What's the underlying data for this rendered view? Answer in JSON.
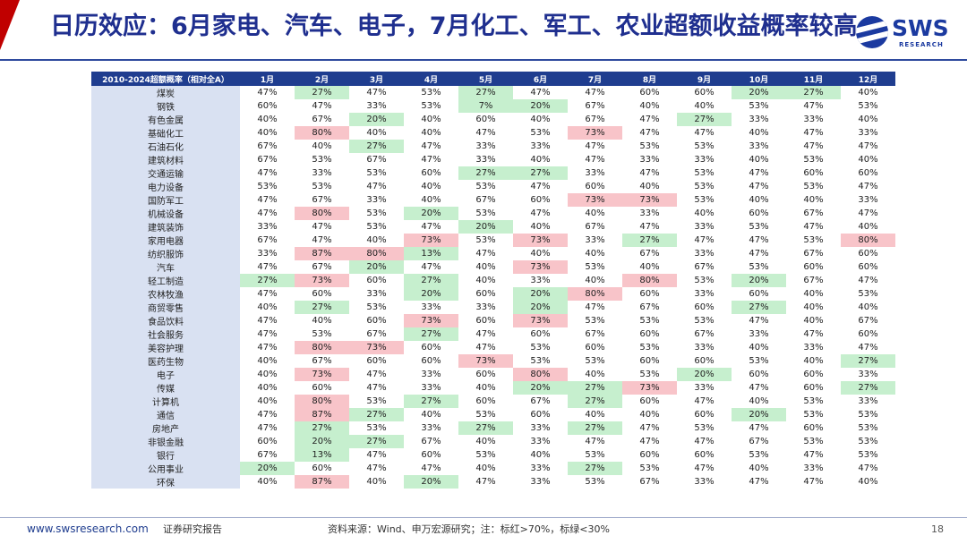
{
  "title": "日历效应：6月家电、汽车、电子，7月化工、军工、农业超额收益概率较高",
  "logo": {
    "text": "SWS",
    "sub": "RESEARCH"
  },
  "table": {
    "header": [
      "2010-2024超额概率（相对全A）",
      "1月",
      "2月",
      "3月",
      "4月",
      "5月",
      "6月",
      "7月",
      "8月",
      "9月",
      "10月",
      "11月",
      "12月"
    ],
    "rows": [
      {
        "name": "煤炭",
        "values": [
          "47%",
          "27%",
          "47%",
          "53%",
          "27%",
          "47%",
          "47%",
          "60%",
          "60%",
          "20%",
          "27%",
          "40%"
        ]
      },
      {
        "name": "钢铁",
        "values": [
          "60%",
          "47%",
          "33%",
          "53%",
          "7%",
          "20%",
          "67%",
          "40%",
          "40%",
          "53%",
          "47%",
          "53%"
        ]
      },
      {
        "name": "有色金属",
        "values": [
          "40%",
          "67%",
          "20%",
          "40%",
          "60%",
          "40%",
          "67%",
          "47%",
          "27%",
          "33%",
          "33%",
          "40%"
        ]
      },
      {
        "name": "基础化工",
        "values": [
          "40%",
          "80%",
          "40%",
          "40%",
          "47%",
          "53%",
          "73%",
          "47%",
          "47%",
          "40%",
          "47%",
          "33%"
        ]
      },
      {
        "name": "石油石化",
        "values": [
          "67%",
          "40%",
          "27%",
          "47%",
          "33%",
          "33%",
          "47%",
          "53%",
          "53%",
          "33%",
          "47%",
          "47%"
        ]
      },
      {
        "name": "建筑材料",
        "values": [
          "67%",
          "53%",
          "67%",
          "47%",
          "33%",
          "40%",
          "47%",
          "33%",
          "33%",
          "40%",
          "53%",
          "40%"
        ]
      },
      {
        "name": "交通运输",
        "values": [
          "47%",
          "33%",
          "53%",
          "60%",
          "27%",
          "27%",
          "33%",
          "47%",
          "53%",
          "47%",
          "60%",
          "60%"
        ]
      },
      {
        "name": "电力设备",
        "values": [
          "53%",
          "53%",
          "47%",
          "40%",
          "53%",
          "47%",
          "60%",
          "40%",
          "53%",
          "47%",
          "53%",
          "47%"
        ]
      },
      {
        "name": "国防军工",
        "values": [
          "47%",
          "67%",
          "33%",
          "40%",
          "67%",
          "60%",
          "73%",
          "73%",
          "53%",
          "40%",
          "40%",
          "33%"
        ]
      },
      {
        "name": "机械设备",
        "values": [
          "47%",
          "80%",
          "53%",
          "20%",
          "53%",
          "47%",
          "40%",
          "33%",
          "40%",
          "60%",
          "67%",
          "47%"
        ]
      },
      {
        "name": "建筑装饰",
        "values": [
          "33%",
          "47%",
          "53%",
          "47%",
          "20%",
          "40%",
          "67%",
          "47%",
          "33%",
          "53%",
          "47%",
          "40%"
        ]
      },
      {
        "name": "家用电器",
        "values": [
          "67%",
          "47%",
          "40%",
          "73%",
          "53%",
          "73%",
          "33%",
          "27%",
          "47%",
          "47%",
          "53%",
          "80%"
        ]
      },
      {
        "name": "纺织服饰",
        "values": [
          "33%",
          "87%",
          "80%",
          "13%",
          "47%",
          "40%",
          "40%",
          "67%",
          "33%",
          "47%",
          "67%",
          "60%"
        ]
      },
      {
        "name": "汽车",
        "values": [
          "47%",
          "67%",
          "20%",
          "47%",
          "40%",
          "73%",
          "53%",
          "40%",
          "67%",
          "53%",
          "60%",
          "60%"
        ]
      },
      {
        "name": "轻工制造",
        "values": [
          "27%",
          "73%",
          "60%",
          "27%",
          "40%",
          "33%",
          "40%",
          "80%",
          "53%",
          "20%",
          "67%",
          "47%"
        ]
      },
      {
        "name": "农林牧渔",
        "values": [
          "47%",
          "60%",
          "33%",
          "20%",
          "60%",
          "20%",
          "80%",
          "60%",
          "33%",
          "60%",
          "40%",
          "53%"
        ]
      },
      {
        "name": "商贸零售",
        "values": [
          "40%",
          "27%",
          "53%",
          "33%",
          "33%",
          "20%",
          "47%",
          "67%",
          "60%",
          "27%",
          "40%",
          "40%"
        ]
      },
      {
        "name": "食品饮料",
        "values": [
          "47%",
          "40%",
          "60%",
          "73%",
          "60%",
          "73%",
          "53%",
          "53%",
          "53%",
          "47%",
          "40%",
          "67%"
        ]
      },
      {
        "name": "社会服务",
        "values": [
          "47%",
          "53%",
          "67%",
          "27%",
          "47%",
          "60%",
          "67%",
          "60%",
          "67%",
          "33%",
          "47%",
          "60%"
        ]
      },
      {
        "name": "美容护理",
        "values": [
          "47%",
          "80%",
          "73%",
          "60%",
          "47%",
          "53%",
          "60%",
          "53%",
          "33%",
          "40%",
          "33%",
          "47%"
        ]
      },
      {
        "name": "医药生物",
        "values": [
          "40%",
          "67%",
          "60%",
          "60%",
          "73%",
          "53%",
          "53%",
          "60%",
          "60%",
          "53%",
          "40%",
          "27%"
        ]
      },
      {
        "name": "电子",
        "values": [
          "40%",
          "73%",
          "47%",
          "33%",
          "60%",
          "80%",
          "40%",
          "53%",
          "20%",
          "60%",
          "60%",
          "33%"
        ]
      },
      {
        "name": "传媒",
        "values": [
          "40%",
          "60%",
          "47%",
          "33%",
          "40%",
          "20%",
          "27%",
          "73%",
          "33%",
          "47%",
          "60%",
          "27%"
        ]
      },
      {
        "name": "计算机",
        "values": [
          "40%",
          "80%",
          "53%",
          "27%",
          "60%",
          "67%",
          "27%",
          "60%",
          "47%",
          "40%",
          "53%",
          "33%"
        ]
      },
      {
        "name": "通信",
        "values": [
          "47%",
          "87%",
          "27%",
          "40%",
          "53%",
          "60%",
          "40%",
          "40%",
          "60%",
          "20%",
          "53%",
          "53%"
        ]
      },
      {
        "name": "房地产",
        "values": [
          "47%",
          "27%",
          "53%",
          "33%",
          "27%",
          "33%",
          "27%",
          "47%",
          "53%",
          "47%",
          "60%",
          "53%"
        ]
      },
      {
        "name": "非银金融",
        "values": [
          "60%",
          "20%",
          "27%",
          "67%",
          "40%",
          "33%",
          "47%",
          "47%",
          "47%",
          "67%",
          "53%",
          "53%"
        ]
      },
      {
        "name": "银行",
        "values": [
          "67%",
          "13%",
          "47%",
          "60%",
          "53%",
          "40%",
          "53%",
          "60%",
          "60%",
          "53%",
          "47%",
          "53%"
        ]
      },
      {
        "name": "公用事业",
        "values": [
          "20%",
          "60%",
          "47%",
          "47%",
          "40%",
          "33%",
          "27%",
          "53%",
          "47%",
          "40%",
          "33%",
          "47%"
        ]
      },
      {
        "name": "环保",
        "values": [
          "40%",
          "87%",
          "40%",
          "20%",
          "47%",
          "33%",
          "53%",
          "67%",
          "33%",
          "47%",
          "47%",
          "40%"
        ]
      }
    ]
  },
  "colors": {
    "high": "#f8c4c9",
    "low": "#c6efce",
    "header": "#1f3d8f",
    "label_bg": "#d9e1f2"
  },
  "footer": {
    "url": "www.swsresearch.com",
    "report": "证券研究报告",
    "source": "资料来源：Wind、申万宏源研究；注：标红>70%，标绿<30%",
    "page": "18"
  }
}
